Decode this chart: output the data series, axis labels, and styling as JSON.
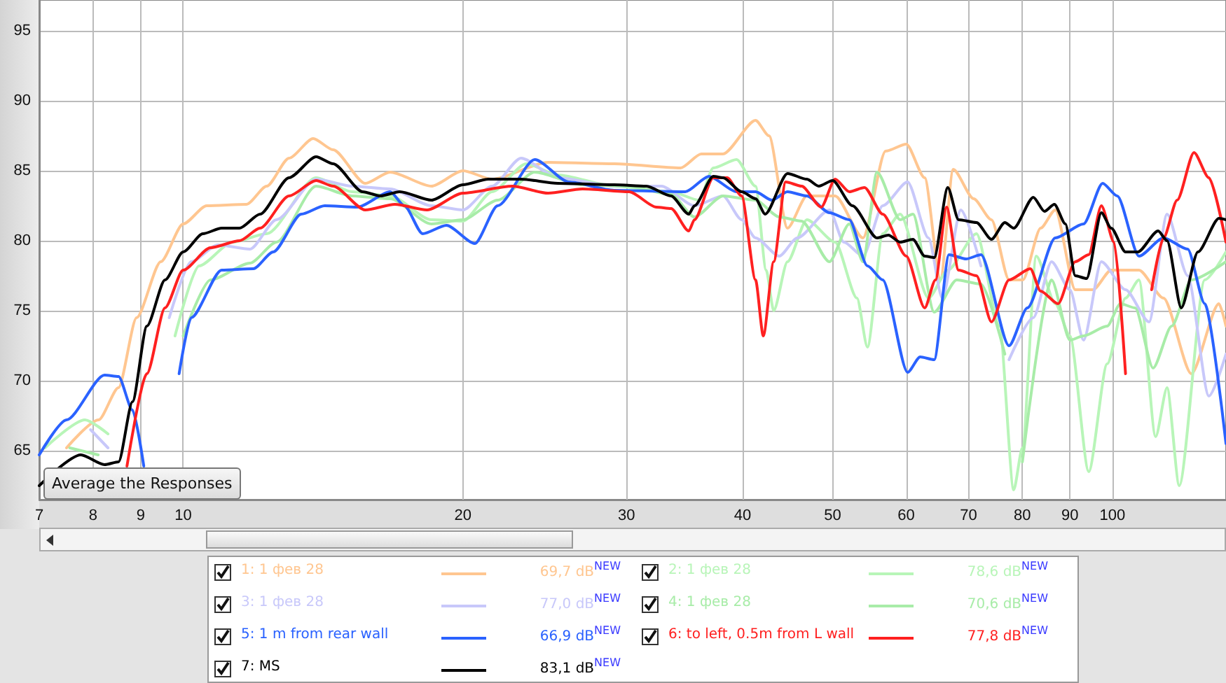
{
  "chart_data": {
    "type": "line",
    "legend": "bottom",
    "grid": true,
    "marker": "none",
    "line_style": "solid",
    "log": "x",
    "xlim": [
      7,
      132.5
    ],
    "ylim": [
      61.5,
      97.2
    ],
    "xticks": [
      7,
      8,
      9,
      10,
      20,
      30,
      40,
      50,
      60,
      70,
      80,
      90,
      100
    ],
    "yticks": [
      65,
      70,
      75,
      80,
      85,
      90,
      95
    ],
    "annotations": [
      "69,7 dB$^{NEW}$",
      "78,6 dB$^{NEW}$",
      "77,0 dB$^{NEW}$",
      "70,6 dB$^{NEW}$",
      "66,9 dB$^{NEW}$",
      "77,8 dB$^{NEW}$",
      "83,1 dB$^{NEW}$",
      "Average the Responses"
    ],
    "series": [
      {
        "name": "1: 1 фев 28",
        "color": "#ffc690",
        "x": [
          7.49,
          8.11,
          8.52,
          8.91,
          9.46,
          10,
          10.6,
          11.7,
          12.3,
          13,
          13.8,
          14.5,
          15.7,
          16.7,
          18.5,
          20,
          21.5,
          24.7,
          29.1,
          34.3,
          36.1,
          38.1,
          41.3,
          42.7,
          44.7,
          46.9,
          50.3,
          53.9,
          57,
          60,
          62.8,
          65.3,
          67.4,
          70.9,
          74.1,
          77.4,
          80.1,
          83.7,
          86.8,
          91.2,
          95.3,
          99.7,
          106.8,
          113.5,
          121.6,
          130.2,
          132.5
        ],
        "values": [
          65.2,
          67.2,
          69.5,
          74.5,
          78.5,
          81.2,
          82.5,
          82.6,
          83.9,
          85.9,
          87.3,
          86.5,
          84.1,
          84.9,
          83.9,
          85,
          84.4,
          85.6,
          85.5,
          85.2,
          86.2,
          86.2,
          88.6,
          87.5,
          80.9,
          83.2,
          83.2,
          80.2,
          86.4,
          86.9,
          84.5,
          77.2,
          85.1,
          83,
          81.5,
          77.2,
          77.2,
          80.9,
          82.2,
          76.5,
          76.5,
          77.9,
          77.9,
          75.9,
          70.5,
          75.5,
          73.9
        ]
      },
      {
        "name": "2: 1 фев 28",
        "color": "#b8f5b8",
        "x": [
          7.1,
          7.84,
          8.3,
          8.7,
          9.23,
          9.8,
          10.4,
          11.3,
          12.3,
          13.9,
          15.2,
          16.7,
          18.5,
          20,
          21.5,
          23.4,
          25.3,
          29.1,
          33.5,
          35.9,
          37.2,
          39.4,
          41.3,
          42.4,
          43.2,
          44.7,
          46.9,
          50.3,
          53.1,
          54.5,
          56.6,
          59.1,
          63.4,
          66.5,
          71.4,
          75.6,
          78.3,
          80,
          82.8,
          86.8,
          90,
          94.3,
          98.7,
          103.3,
          106.8,
          111.3,
          114.5,
          118,
          125.7,
          132.5
        ],
        "values": [
          65.2,
          67.2,
          66.2,
          null,
          null,
          73.2,
          78.2,
          79.9,
          80.5,
          84.5,
          83.5,
          83.2,
          81.5,
          81.4,
          83.5,
          85.5,
          84.7,
          83.9,
          83.5,
          82.9,
          85.2,
          85.8,
          83.9,
          77.9,
          75,
          78.5,
          81.5,
          79.9,
          75.9,
          72.4,
          80.5,
          81.9,
          75.9,
          77.9,
          80.5,
          73.9,
          62.2,
          65.2,
          78.9,
          75.5,
          73.2,
          63.5,
          71.2,
          75.9,
          77.2,
          66,
          69.5,
          62.5,
          77.2,
          79.2
        ]
      },
      {
        "name": "3: 1 фев 28",
        "color": "#c8c8fa",
        "x": [
          7.95,
          8.3,
          8.52,
          9.14,
          9.66,
          10.2,
          10.9,
          11.8,
          12.6,
          13.9,
          15.2,
          16.7,
          18.5,
          20,
          21.5,
          23.1,
          25.3,
          29.1,
          32.7,
          35.5,
          38.1,
          39.9,
          41.3,
          43.8,
          45.8,
          49.6,
          51.4,
          53.9,
          56.6,
          60.2,
          63.4,
          65.6,
          68.7,
          72.2,
          75.6,
          77.4,
          82.2,
          86,
          90,
          93.1,
          97.3,
          103.3,
          109.5,
          114.5,
          120.5,
          127,
          132.5
        ],
        "values": [
          66.5,
          65.2,
          null,
          null,
          74.5,
          78.5,
          79.7,
          79.4,
          81.5,
          84.4,
          83.9,
          83.7,
          82.5,
          82.2,
          83.9,
          85.9,
          84.5,
          83.9,
          83.9,
          82.5,
          83.2,
          81.5,
          80.2,
          78.9,
          80.2,
          82.2,
          79.9,
          78.9,
          82.5,
          84.2,
          80.2,
          75.9,
          82.2,
          78.2,
          null,
          71.5,
          74.5,
          78.5,
          76.5,
          72.9,
          78.5,
          76.5,
          74.2,
          81.9,
          77.5,
          68.9,
          71.9
        ]
      },
      {
        "name": "4: 1 фев 28",
        "color": "#a8eca8",
        "x": [
          7.55,
          8.1,
          8.52,
          9.46,
          10,
          10.7,
          11.8,
          12.6,
          13.9,
          15.2,
          16.7,
          18.5,
          20,
          21.8,
          23.9,
          26.9,
          30.2,
          33.5,
          35.5,
          38.1,
          41.3,
          43.8,
          46.3,
          49.6,
          52.1,
          53.9,
          55.8,
          59.1,
          61,
          64.3,
          68,
          72.2,
          76.6,
          78.3,
          80,
          86,
          90,
          93.1,
          98.7,
          102,
          105.8,
          110.6,
          115.8,
          121.6,
          132.5
        ],
        "values": [
          65.2,
          64.7,
          null,
          null,
          73.2,
          77.2,
          78.4,
          79.9,
          83.9,
          83.2,
          83,
          81.2,
          81.5,
          82.9,
          84.9,
          84,
          83.9,
          83.3,
          81.7,
          83.2,
          82.9,
          81.7,
          81.4,
          78.5,
          81.2,
          78.5,
          84.9,
          81.5,
          81.9,
          74.9,
          77.2,
          76.9,
          71.9,
          null,
          64.2,
          77.2,
          72.9,
          73.2,
          73.9,
          75.5,
          75.2,
          70.9,
          73.9,
          77.2,
          78.5
        ]
      },
      {
        "name": "5: 1 m from rear wall",
        "color": "#2a62ff",
        "x": [
          7,
          7.49,
          8.23,
          8.52,
          8.82,
          9.07,
          9.23,
          9.66,
          9.9,
          10.2,
          11,
          11.9,
          12.5,
          13.4,
          14.2,
          15.4,
          16.7,
          17.3,
          18.1,
          19.2,
          20.6,
          21.8,
          23.9,
          26,
          29.1,
          34.7,
          36.8,
          39.4,
          41.3,
          43,
          44.7,
          46.9,
          49.6,
          52.1,
          54.5,
          56.6,
          60.2,
          62.1,
          64.3,
          66.7,
          69.6,
          72.2,
          77.4,
          81,
          86.8,
          93.1,
          97.6,
          101.2,
          106.8,
          113.5,
          120.5,
          125.7,
          132.5
        ],
        "values": [
          64.7,
          67.2,
          70.4,
          70.3,
          67.9,
          63.9,
          null,
          null,
          70.5,
          74.5,
          77.9,
          78,
          79.2,
          81.9,
          82.5,
          82.4,
          83.5,
          82.5,
          80.5,
          81.1,
          79.8,
          82.5,
          85.8,
          84.2,
          83.6,
          83.5,
          84.6,
          83.5,
          83.5,
          82.9,
          83.5,
          83.2,
          82,
          81.5,
          78.2,
          77.2,
          70.6,
          71.7,
          71.5,
          79,
          78.7,
          79,
          72.5,
          75.2,
          80.2,
          81.2,
          84.1,
          83.2,
          78.9,
          80.2,
          79.4,
          75.5,
          65.5
        ]
      },
      {
        "name": "6: to left, 0.5m from L wall",
        "color": "#ff2020",
        "x": [
          8.7,
          9.14,
          9.56,
          10,
          10.7,
          11.5,
          12.1,
          13,
          13.9,
          14.5,
          15.7,
          16.9,
          18.3,
          20,
          22.6,
          24.7,
          26.9,
          30.2,
          32.3,
          33.5,
          35,
          35.5,
          37.2,
          38.5,
          39.9,
          41.3,
          42.1,
          43.2,
          44.5,
          46.3,
          48.6,
          50.3,
          52.1,
          54.1,
          56.6,
          60,
          62.8,
          64.5,
          66.3,
          68.3,
          71.4,
          74.1,
          77.4,
          81.6,
          83.7,
          87.4,
          91.2,
          94.3,
          97.3,
          100.4,
          103.3,
          105.8,
          106.8,
          110.2,
          113.5,
          117.4,
          122.4,
          127,
          132.5
        ],
        "values": [
          63.9,
          70.5,
          75.2,
          77.9,
          79.5,
          80,
          80.9,
          83.2,
          84.3,
          83.9,
          82.2,
          82.6,
          82.2,
          83.4,
          83.9,
          83.4,
          83.7,
          83.5,
          82.4,
          82.3,
          80.7,
          81.5,
          84.5,
          84.5,
          83.2,
          77.2,
          73.2,
          78.5,
          84.2,
          83.9,
          82.4,
          84.4,
          83.5,
          83.8,
          81.9,
          78.9,
          75.2,
          77.2,
          82.4,
          77.9,
          77.5,
          74.2,
          77.2,
          78,
          76.4,
          75.5,
          78.5,
          79,
          82.5,
          79.9,
          70.5,
          null,
          null,
          76.5,
          80.2,
          82.9,
          86.3,
          84.5,
          79.9
        ]
      },
      {
        "name": "7: MS",
        "color": "#000000",
        "x": [
          7,
          7.76,
          8.23,
          8.52,
          8.82,
          9.14,
          9.56,
          10,
          10.5,
          11,
          11.5,
          12.1,
          13,
          13.9,
          14.5,
          15.6,
          16.3,
          17.1,
          18.5,
          20,
          21.3,
          23.1,
          25.3,
          29.1,
          31.5,
          33.5,
          35,
          35.5,
          37.2,
          38.1,
          39.9,
          41.3,
          42.3,
          44.7,
          46.9,
          48.3,
          50,
          52.5,
          55.8,
          57.4,
          59.1,
          61,
          62.8,
          64.3,
          66.5,
          68.3,
          71.4,
          74.1,
          76.6,
          78.3,
          82.2,
          84.5,
          86.6,
          89,
          91.2,
          93.8,
          97.3,
          99.7,
          103.3,
          106.5,
          112,
          114.5,
          118.6,
          123.6,
          130.2,
          132.5
        ],
        "values": [
          62.5,
          64.7,
          64,
          64.2,
          68.5,
          73.9,
          77.2,
          79.2,
          80.5,
          80.9,
          80.9,
          81.9,
          84.5,
          86,
          85.5,
          83.5,
          83.2,
          83.5,
          82.9,
          84,
          84.4,
          84.4,
          84.1,
          84,
          83.9,
          83.2,
          81.9,
          82.5,
          84.6,
          84.5,
          83.5,
          83,
          81.9,
          84.8,
          84.4,
          83.9,
          84.3,
          82.5,
          80.2,
          80.4,
          79.9,
          80.1,
          78.9,
          78.8,
          83.8,
          81.5,
          81.3,
          80.1,
          81.3,
          80.9,
          83.1,
          82.1,
          82.6,
          81.2,
          77.5,
          77.3,
          82,
          80.9,
          79.2,
          79.2,
          80.7,
          80,
          75.2,
          79.2,
          81.6,
          81.5
        ]
      }
    ]
  }
}
